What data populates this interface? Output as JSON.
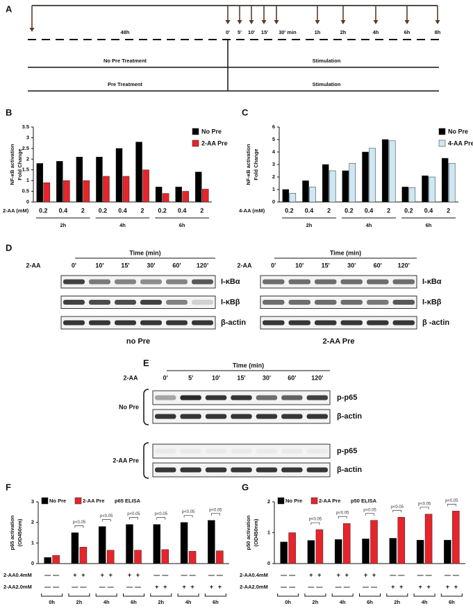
{
  "timeline": {
    "panel": "A",
    "pre_label": "48h",
    "marks": [
      "0'",
      "5'",
      "10'",
      "15'",
      "30' min",
      "1h",
      "2h",
      "4h",
      "6h",
      "8h"
    ],
    "rows": [
      [
        "No Pre Treatment",
        "Stimulation"
      ],
      [
        "Pre Treatment",
        "Stimulation"
      ]
    ]
  },
  "chart_data": [
    {
      "type": "bar",
      "panel": "B",
      "ylabel": [
        "NF-κB activation",
        "Fold Change"
      ],
      "xlabel": "2-AA (mM)",
      "categories": [
        "0.2",
        "0.4",
        "2",
        "0.2",
        "0.4",
        "2",
        "0.2",
        "0.4",
        "2"
      ],
      "groups": [
        "2h",
        "4h",
        "6h"
      ],
      "series": [
        {
          "name": "No Pre",
          "color": "#000000",
          "values": [
            1.8,
            1.9,
            2.1,
            2.1,
            2.5,
            2.8,
            0.7,
            0.7,
            1.4
          ]
        },
        {
          "name": "2-AA Pre",
          "color": "#e8242a",
          "values": [
            0.9,
            1.0,
            1.0,
            1.2,
            1.2,
            1.5,
            0.4,
            0.5,
            0.6
          ]
        }
      ],
      "ylim": [
        0,
        3.5
      ],
      "yticks": [
        0,
        0.5,
        1,
        1.5,
        2,
        2.5,
        3,
        3.5
      ],
      "legend": "upper right"
    },
    {
      "type": "bar",
      "panel": "C",
      "ylabel": [
        "NF-κB activation",
        "Fold Change"
      ],
      "xlabel": "4-AA (mM)",
      "categories": [
        "0.2",
        "0.4",
        "2",
        "0.2",
        "0.4",
        "2",
        "0.2",
        "0.4",
        "2"
      ],
      "groups": [
        "2h",
        "4h",
        "6h"
      ],
      "series": [
        {
          "name": "No Pre",
          "color": "#000000",
          "values": [
            1.0,
            1.7,
            3.0,
            2.5,
            4.0,
            5.0,
            1.2,
            2.1,
            3.5
          ]
        },
        {
          "name": "4-AA Pre",
          "color": "#cce8f4",
          "values": [
            0.7,
            1.2,
            2.5,
            3.1,
            4.3,
            4.9,
            1.15,
            2.0,
            3.1
          ]
        }
      ],
      "ylim": [
        0,
        6
      ],
      "yticks": [
        0,
        1,
        2,
        3,
        4,
        5,
        6
      ],
      "legend": "upper right"
    },
    {
      "type": "bar",
      "panel": "F",
      "ylabel": [
        "p65 activation",
        "(OD450nm)"
      ],
      "subtitle": "p65 ELISA",
      "categories": [
        "0h",
        "2h",
        "4h",
        "6h",
        "2h",
        "4h",
        "6h"
      ],
      "series": [
        {
          "name": "No Pre",
          "color": "#000000",
          "values": [
            0.3,
            1.5,
            1.8,
            1.9,
            1.9,
            2.0,
            2.1
          ]
        },
        {
          "name": "2-AA Pre",
          "color": "#e8242a",
          "values": [
            0.4,
            0.8,
            0.65,
            0.65,
            0.68,
            0.6,
            0.62
          ]
        }
      ],
      "annotations": [
        "p<0.05",
        "p<0.05",
        "p<0.05",
        "p<0.05",
        "p<0.05",
        "p<0.05"
      ],
      "rows": [
        {
          "label": "2-AA0.4mM",
          "signs": [
            [
              "—",
              "—"
            ],
            [
              "+",
              "+"
            ],
            [
              "+",
              "+"
            ],
            [
              "+",
              "+"
            ],
            [
              "—",
              "—"
            ],
            [
              "—",
              "—"
            ],
            [
              "—",
              "—"
            ]
          ]
        },
        {
          "label": "2-AA2.0mM",
          "signs": [
            [
              "—",
              "—"
            ],
            [
              "—",
              "—"
            ],
            [
              "—",
              "—"
            ],
            [
              "—",
              "—"
            ],
            [
              "+",
              "+"
            ],
            [
              "+",
              "+"
            ],
            [
              "+",
              "+"
            ]
          ]
        }
      ],
      "ylim": [
        0,
        3
      ],
      "yticks": [
        0,
        1,
        2,
        3
      ],
      "legend": "upper left"
    },
    {
      "type": "bar",
      "panel": "G",
      "ylabel": [
        "p50 activation",
        "(OD450nm)"
      ],
      "subtitle": "p50 ELISA",
      "categories": [
        "0h",
        "2h",
        "4h",
        "6h",
        "2h",
        "4h",
        "6h"
      ],
      "series": [
        {
          "name": "No Pre",
          "color": "#000000",
          "values": [
            0.7,
            0.75,
            0.78,
            0.8,
            0.82,
            0.76,
            0.76
          ]
        },
        {
          "name": "2-AA Pre",
          "color": "#e8242a",
          "values": [
            1.0,
            1.1,
            1.3,
            1.4,
            1.5,
            1.6,
            1.7
          ]
        }
      ],
      "annotations": [
        "p<0.05",
        "p<0.05",
        "p<0.05",
        "p<0.05",
        "p<0.05",
        "p<0.05"
      ],
      "rows": [
        {
          "label": "2-AA0.4mM",
          "signs": [
            [
              "—",
              "—"
            ],
            [
              "+",
              "+"
            ],
            [
              "+",
              "+"
            ],
            [
              "+",
              "+"
            ],
            [
              "—",
              "—"
            ],
            [
              "—",
              "—"
            ],
            [
              "—",
              "—"
            ]
          ]
        },
        {
          "label": "2-AA2.0mM",
          "signs": [
            [
              "—",
              "—"
            ],
            [
              "—",
              "—"
            ],
            [
              "—",
              "—"
            ],
            [
              "—",
              "—"
            ],
            [
              "+",
              "+"
            ],
            [
              "+",
              "+"
            ],
            [
              "+",
              "+"
            ]
          ]
        }
      ],
      "ylim": [
        0,
        2
      ],
      "yticks": [
        0,
        1,
        2
      ],
      "legend": "upper left"
    }
  ],
  "blot_d": {
    "panel": "D",
    "blots": [
      {
        "time_label": "Time (min)",
        "treatment": "2-AA",
        "lanes": [
          "0'",
          "10'",
          "15'",
          "30'",
          "60'",
          "120'"
        ],
        "bands": [
          "I-κBα",
          "I-κBβ",
          "β-actin"
        ],
        "caption": "no Pre"
      },
      {
        "time_label": "Time (min)",
        "treatment": "2-AA",
        "lanes": [
          "0'",
          "10'",
          "15'",
          "30'",
          "60'",
          "120'"
        ],
        "bands": [
          "I-κBα",
          "I-κBβ",
          "β -actin"
        ],
        "caption": "2-AA Pre"
      }
    ]
  },
  "blot_e": {
    "panel": "E",
    "time_label": "Time (min)",
    "treatment": "2-AA",
    "lanes": [
      "0'",
      "5'",
      "10'",
      "15'",
      "30'",
      "60'",
      "120'"
    ],
    "groups": [
      {
        "label": "No Pre",
        "bands": [
          "p-p65",
          "β-actin"
        ]
      },
      {
        "label": "2-AA Pre",
        "bands": [
          "p-p65",
          "β-actin"
        ]
      }
    ]
  }
}
